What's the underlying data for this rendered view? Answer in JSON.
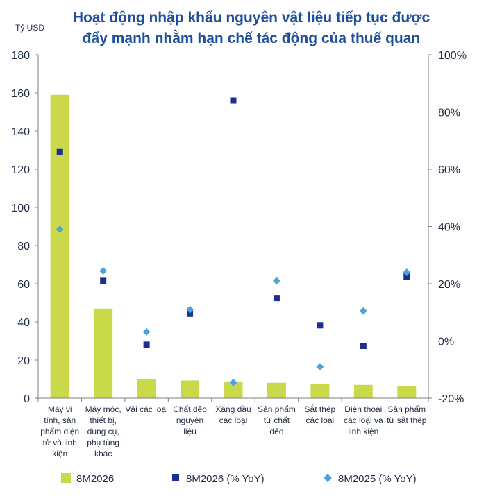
{
  "chart_data": {
    "type": "bar",
    "title_lines": [
      "Hoạt động nhập khẩu nguyên vật liệu tiếp tục được",
      "đẩy mạnh nhằm hạn chế tác động của thuế quan"
    ],
    "y_unit_label": "Tỷ USD",
    "categories": [
      [
        "Máy vi",
        "tính, sản",
        "phẩm điện",
        "tử và linh",
        "kiện"
      ],
      [
        "Máy móc,",
        "thiết bị,",
        "dụng cụ,",
        "phụ tùng",
        "khác"
      ],
      [
        "Vải các loại"
      ],
      [
        "Chất dẻo",
        "nguyên",
        "liệu"
      ],
      [
        "Xăng dầu",
        "các loại"
      ],
      [
        "Sản phẩm",
        "từ chất",
        "dẻo"
      ],
      [
        "Sắt thép",
        "các loại"
      ],
      [
        "Điện thoại",
        "các loại và",
        "linh kiện"
      ],
      [
        "Sản phẩm",
        "từ sắt thép"
      ]
    ],
    "ylim_left": [
      0,
      180
    ],
    "left_ticks": [
      "0",
      "20",
      "40",
      "60",
      "80",
      "100",
      "120",
      "140",
      "160",
      "180"
    ],
    "ylim_right": [
      -20,
      100
    ],
    "right_ticks": [
      "-20%",
      "0%",
      "20%",
      "40%",
      "60%",
      "80%",
      "100%"
    ],
    "series": [
      {
        "name": "8M2026",
        "type": "bar",
        "axis": "left",
        "color": "#c9d94a",
        "values": [
          159,
          47,
          10,
          9.3,
          8.8,
          8.1,
          7.6,
          7.0,
          6.5
        ]
      },
      {
        "name": "8M2026 (% YoY)",
        "type": "marker",
        "marker": "square",
        "axis": "right",
        "color": "#1b2f8f",
        "values": [
          66,
          21,
          -1.3,
          9.5,
          84,
          15,
          5.5,
          -1.7,
          22.5
        ]
      },
      {
        "name": "8M2025 (% YoY)",
        "type": "marker",
        "marker": "diamond",
        "axis": "right",
        "color": "#4fa3dd",
        "values": [
          39,
          24.5,
          3.2,
          11,
          -14.5,
          21,
          -9,
          10.5,
          24
        ]
      }
    ],
    "legend_position": "bottom",
    "grid": false
  }
}
